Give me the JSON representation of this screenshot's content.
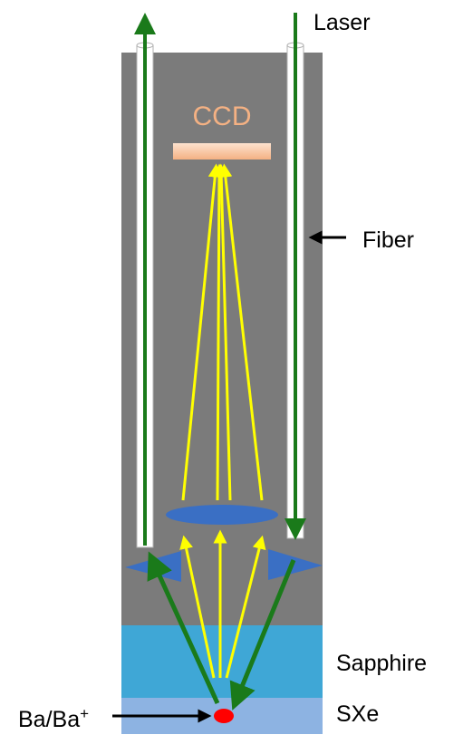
{
  "labels": {
    "laser": "Laser",
    "ccd": "CCD",
    "fiber": "Fiber",
    "sapphire": "Sapphire",
    "sxe": "SXe",
    "ion_base": "Ba/Ba",
    "ion_sup": "+"
  },
  "colors": {
    "chamber": "#7b7b7b",
    "sapphire": "#3fa7d6",
    "sxe": "#8db3e2",
    "laser_beam": "#1a7a1a",
    "light_ray": "#ffff00",
    "lens": "#3a6fc4",
    "ccd_text": "#f4b183",
    "ccd_plate": "#f8c9a8",
    "ion": "#ff0000"
  }
}
